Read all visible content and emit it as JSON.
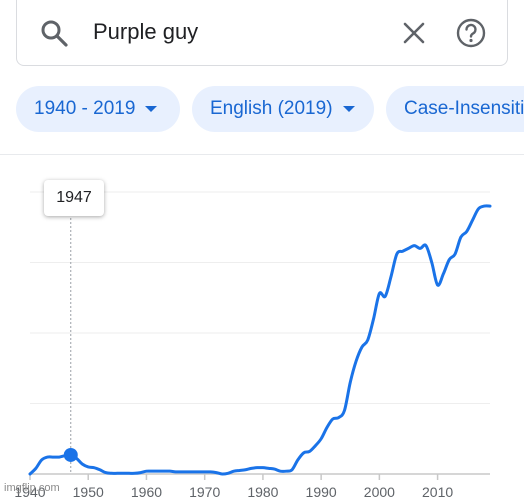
{
  "search": {
    "query": "Purple guy"
  },
  "filters": {
    "year_range": "1940 - 2019",
    "corpus": "English (2019)",
    "case": "Case-Insensitive"
  },
  "tooltip": {
    "year": "1947"
  },
  "watermark": "imgflip.com",
  "colors": {
    "accent": "#1a73e8",
    "chip_bg": "#e8f0fe",
    "chip_text": "#1967d2"
  },
  "chart_data": {
    "type": "line",
    "series": [
      {
        "values": [
          [
            1940,
            0.0
          ],
          [
            1941,
            0.4
          ],
          [
            1942,
            1.0
          ],
          [
            1943,
            1.2
          ],
          [
            1944,
            1.2
          ],
          [
            1945,
            1.2
          ],
          [
            1946,
            1.3
          ],
          [
            1947,
            1.35
          ],
          [
            1948,
            1.1
          ],
          [
            1949,
            0.7
          ],
          [
            1950,
            0.5
          ],
          [
            1951,
            0.45
          ],
          [
            1952,
            0.3
          ],
          [
            1953,
            0.1
          ],
          [
            1954,
            0.05
          ],
          [
            1955,
            0.05
          ],
          [
            1956,
            0.05
          ],
          [
            1957,
            0.05
          ],
          [
            1958,
            0.05
          ],
          [
            1959,
            0.1
          ],
          [
            1960,
            0.2
          ],
          [
            1961,
            0.2
          ],
          [
            1962,
            0.2
          ],
          [
            1963,
            0.2
          ],
          [
            1964,
            0.2
          ],
          [
            1965,
            0.15
          ],
          [
            1966,
            0.15
          ],
          [
            1967,
            0.15
          ],
          [
            1968,
            0.15
          ],
          [
            1969,
            0.15
          ],
          [
            1970,
            0.15
          ],
          [
            1971,
            0.15
          ],
          [
            1972,
            0.1
          ],
          [
            1973,
            0.0
          ],
          [
            1974,
            0.05
          ],
          [
            1975,
            0.2
          ],
          [
            1976,
            0.25
          ],
          [
            1977,
            0.3
          ],
          [
            1978,
            0.4
          ],
          [
            1979,
            0.45
          ],
          [
            1980,
            0.45
          ],
          [
            1981,
            0.4
          ],
          [
            1982,
            0.35
          ],
          [
            1983,
            0.2
          ],
          [
            1984,
            0.2
          ],
          [
            1985,
            0.3
          ],
          [
            1986,
            1.0
          ],
          [
            1987,
            1.5
          ],
          [
            1988,
            1.6
          ],
          [
            1989,
            2.0
          ],
          [
            1990,
            2.5
          ],
          [
            1991,
            3.3
          ],
          [
            1992,
            3.9
          ],
          [
            1993,
            4.0
          ],
          [
            1994,
            4.5
          ],
          [
            1995,
            6.5
          ],
          [
            1996,
            8.0
          ],
          [
            1997,
            9.0
          ],
          [
            1998,
            9.5
          ],
          [
            1999,
            11.0
          ],
          [
            2000,
            12.8
          ],
          [
            2001,
            12.6
          ],
          [
            2002,
            14.0
          ],
          [
            2003,
            15.6
          ],
          [
            2004,
            15.8
          ],
          [
            2005,
            16.0
          ],
          [
            2006,
            16.2
          ],
          [
            2007,
            16.0
          ],
          [
            2008,
            16.2
          ],
          [
            2009,
            15.0
          ],
          [
            2010,
            13.4
          ],
          [
            2011,
            14.2
          ],
          [
            2012,
            15.2
          ],
          [
            2013,
            15.6
          ],
          [
            2014,
            16.8
          ],
          [
            2015,
            17.2
          ],
          [
            2016,
            18.0
          ],
          [
            2017,
            18.8
          ],
          [
            2018,
            19.0
          ],
          [
            2019,
            19.0
          ]
        ]
      }
    ],
    "highlight": {
      "x": 1947,
      "y": 1.35
    },
    "xlabel": "",
    "ylabel": "",
    "xlim": [
      1940,
      2019
    ],
    "ylim": [
      0,
      20
    ],
    "x_ticks": [
      1940,
      1950,
      1960,
      1970,
      1980,
      1990,
      2000,
      2010
    ],
    "grid": true
  }
}
